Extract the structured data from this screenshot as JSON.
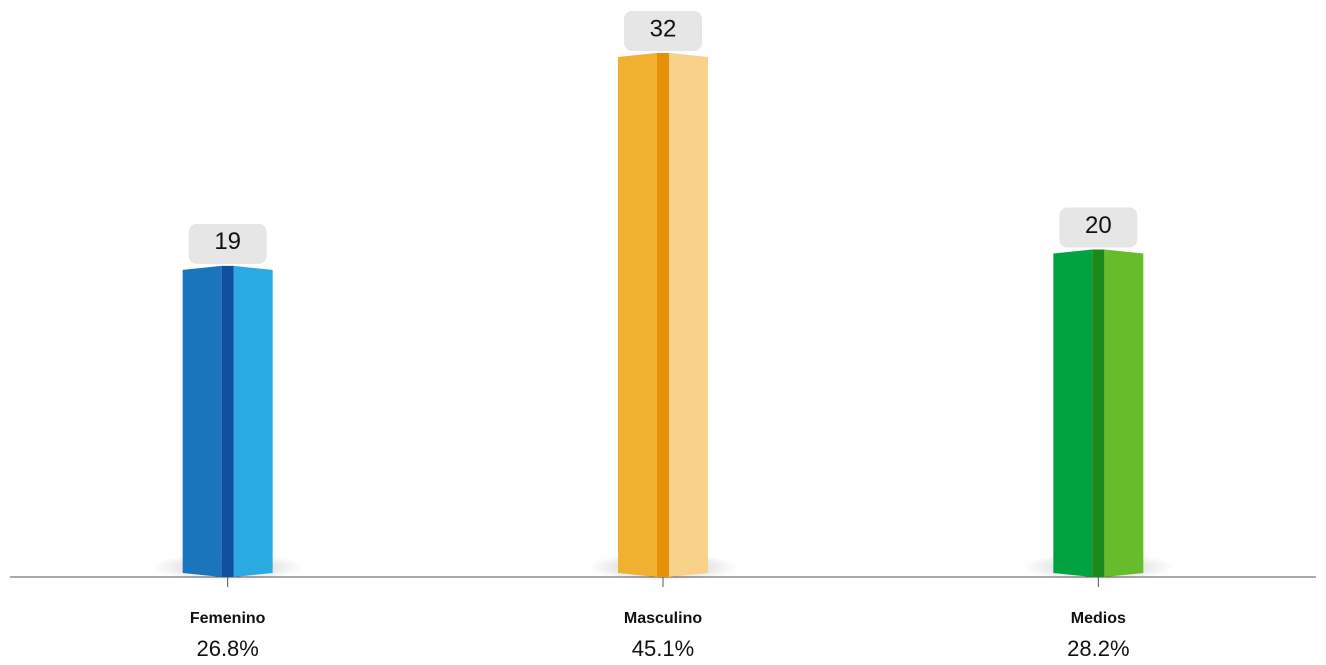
{
  "chart_data": {
    "type": "bar",
    "categories": [
      "Femenino",
      "Masculino",
      "Medios"
    ],
    "values": [
      19,
      32,
      20
    ],
    "share_labels": [
      "26.8%",
      "45.1%",
      "28.2%"
    ],
    "series_colors": [
      {
        "dark": "#1b75bc",
        "ridge": "#0f4f9e",
        "light": "#29abe2"
      },
      {
        "dark": "#f0b030",
        "ridge": "#e8900c",
        "light": "#f8d18a"
      },
      {
        "dark": "#00a33f",
        "ridge": "#1b8a1b",
        "light": "#65bd2b"
      }
    ]
  }
}
